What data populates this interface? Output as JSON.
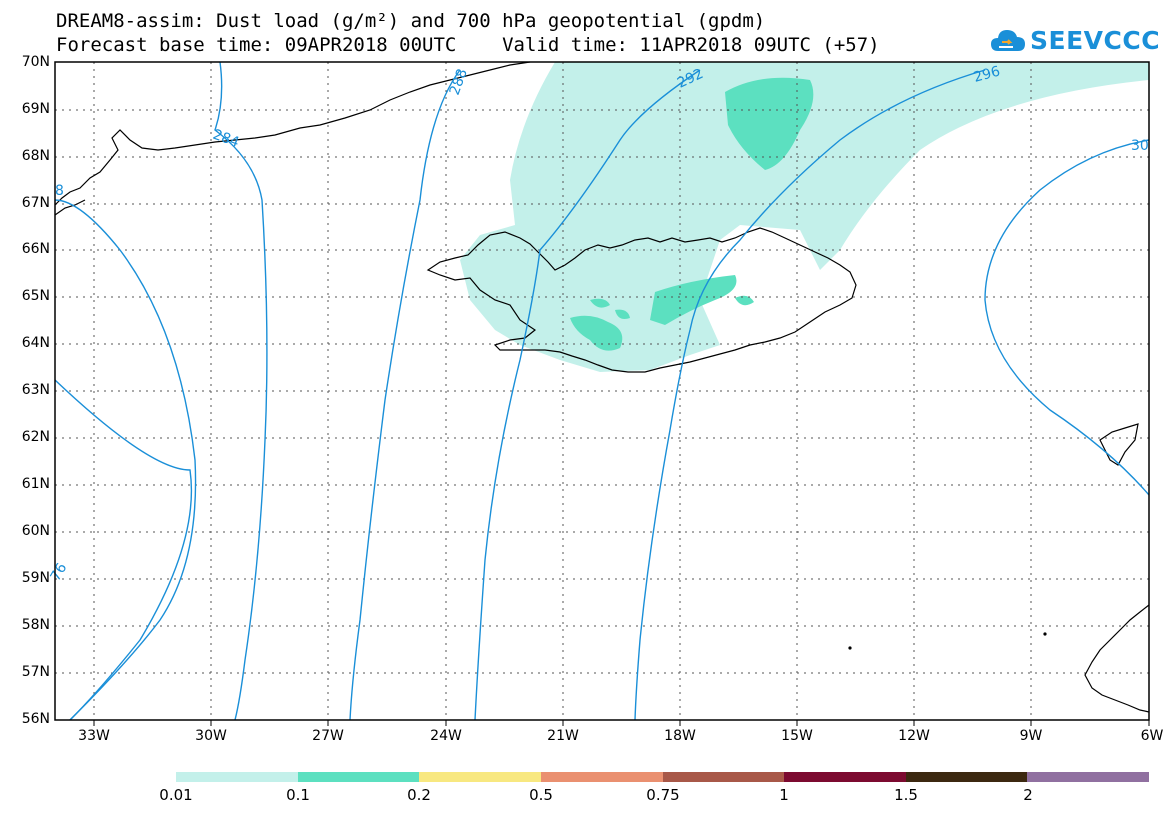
{
  "title": {
    "line1": "DREAM8-assim: Dust load (g/m²) and 700 hPa geopotential (gpdm)",
    "line2": "Forecast base time: 09APR2018 00UTC    Valid time: 11APR2018 09UTC (+57)"
  },
  "logo": {
    "text": "SEEVCCC",
    "icon": "cloud-icon",
    "color": "#1a8fd8"
  },
  "axes": {
    "lat_labels": [
      "70N",
      "69N",
      "68N",
      "67N",
      "66N",
      "65N",
      "64N",
      "63N",
      "62N",
      "61N",
      "60N",
      "59N",
      "58N",
      "57N",
      "56N"
    ],
    "lon_labels": [
      "33W",
      "30W",
      "27W",
      "24W",
      "21W",
      "18W",
      "15W",
      "12W",
      "9W",
      "6W"
    ],
    "lat_range": [
      56,
      70
    ],
    "lon_range": [
      -34.5,
      -6
    ]
  },
  "contours": {
    "color": "#1a8fd8",
    "labels": [
      "284",
      "288",
      "292",
      "296",
      "30",
      "76",
      "8"
    ]
  },
  "colorbar": {
    "colors": [
      "#c3f0ea",
      "#5ce0c0",
      "#f8e880",
      "#ea9070",
      "#a85848",
      "#7c0a30",
      "#3c2810",
      "#9070a0"
    ],
    "labels": [
      "0.01",
      "0.1",
      "0.2",
      "0.5",
      "0.75",
      "1",
      "1.5",
      "2"
    ]
  }
}
